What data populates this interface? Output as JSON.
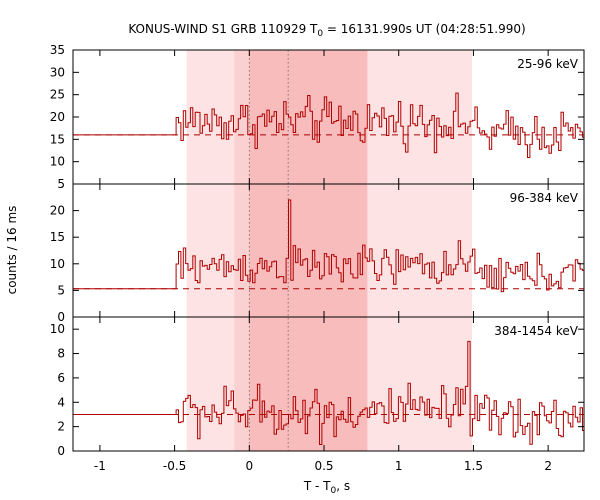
{
  "chart_data": {
    "type": "line",
    "title": "KONUS-WIND S1 GRB 110929 T",
    "title_sub": "0",
    "title_rest": " = 16131.990s UT (04:28:51.990)",
    "xlabel": "T - T",
    "xlabel_sub": "0",
    "xlabel_rest": ", s",
    "ylabel": "counts / 16 ms",
    "xlim": [
      -1.18,
      2.24
    ],
    "x_ticks": [
      -1,
      -0.5,
      0,
      0.5,
      1,
      1.5,
      2
    ],
    "x_tick_labels": [
      "-1",
      "-0.5",
      "0",
      "0.5",
      "1",
      "1.5",
      "2"
    ],
    "bin_width_s": 0.016,
    "trigger_start": -0.49,
    "colors": {
      "curve": "#b00000",
      "band_light": "#fde3e3",
      "band_mid": "#fbd0d0",
      "band_dark": "#f8bcbc"
    },
    "shaded_regions": [
      {
        "from": -0.42,
        "to": 1.49,
        "shade": "light"
      },
      {
        "from": -0.1,
        "to": 0.79,
        "shade": "mid"
      },
      {
        "from": 0.0,
        "to": 0.79,
        "shade": "dark"
      }
    ],
    "dotted_lines": [
      0.0,
      0.26
    ],
    "panels": [
      {
        "label": "25-96 keV",
        "ylim": [
          5,
          35
        ],
        "y_ticks": [
          5,
          10,
          15,
          20,
          25,
          30,
          35
        ],
        "y_tick_labels": [
          "5",
          "10",
          "15",
          "20",
          "25",
          "30",
          "35"
        ],
        "background": 16,
        "pre_level": 16,
        "mean": 19,
        "amp": 4.5,
        "spike_at": -1,
        "spike_val": 0
      },
      {
        "label": "96-384 keV",
        "ylim": [
          0,
          25
        ],
        "y_ticks": [
          0,
          5,
          10,
          15,
          20
        ],
        "y_tick_labels": [
          "0",
          "5",
          "10",
          "15",
          "20"
        ],
        "background": 5.3,
        "pre_level": 5.3,
        "mean": 9.5,
        "amp": 3.2,
        "spike_at": 0.25,
        "spike_val": 22
      },
      {
        "label": "384-1454 keV",
        "ylim": [
          0,
          11
        ],
        "y_ticks": [
          0,
          2,
          4,
          6,
          8,
          10
        ],
        "y_tick_labels": [
          "0",
          "2",
          "4",
          "6",
          "8",
          "10"
        ],
        "background": 3,
        "pre_level": 3,
        "mean": 3.2,
        "amp": 1.8,
        "spike_at": 1.45,
        "spike_val": 9
      }
    ]
  }
}
